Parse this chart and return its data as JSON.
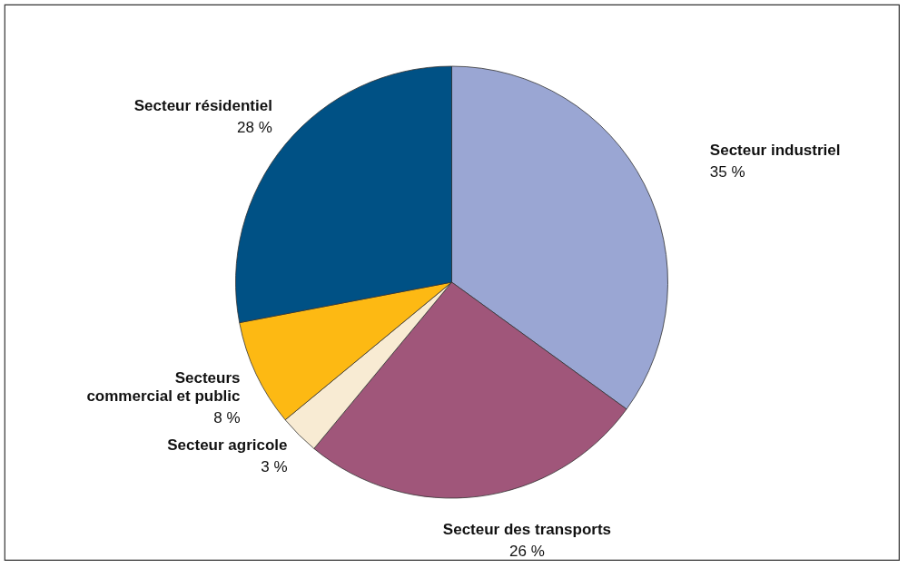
{
  "chart_data": {
    "type": "pie",
    "categories": [
      "Secteur industriel",
      "Secteur des transports",
      "Secteur agricole",
      "Secteurs\ncommercial et public",
      "Secteur résidentiel"
    ],
    "values": [
      35,
      26,
      3,
      8,
      28
    ],
    "value_labels": [
      "35 %",
      "26 %",
      "3 %",
      "8 %",
      "28 %"
    ],
    "colors": [
      "#9aa6d3",
      "#a0567a",
      "#f8ebd3",
      "#fdb913",
      "#005185"
    ],
    "legend": false
  }
}
